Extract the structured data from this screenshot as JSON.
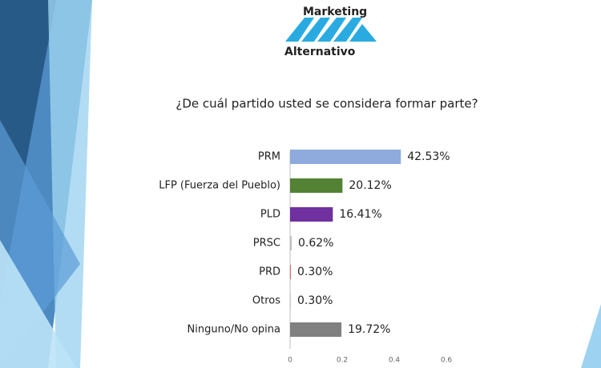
{
  "logo": {
    "top": "Marketing",
    "bottom": "Alternativo"
  },
  "chart_data": {
    "type": "bar",
    "orientation": "horizontal",
    "title": "¿De cuál partido usted se considera formar parte?",
    "categories": [
      "PRM",
      "LFP (Fuerza del Pueblo)",
      "PLD",
      "PRSC",
      "PRD",
      "Otros",
      "Ninguno/No opina"
    ],
    "values": [
      0.4253,
      0.2012,
      0.1641,
      0.0062,
      0.003,
      0.003,
      0.1972
    ],
    "value_labels": [
      "42.53%",
      "20.12%",
      "16.41%",
      "0.62%",
      "0.30%",
      "0.30%",
      "19.72%"
    ],
    "colors": [
      "#8faadc",
      "#548235",
      "#7030a0",
      "#bfbfbf",
      "#e06666",
      "#c9c9c9",
      "#808080"
    ],
    "xlim": [
      0,
      0.6
    ],
    "xticks": [
      0,
      0.2,
      0.4,
      0.6
    ]
  }
}
